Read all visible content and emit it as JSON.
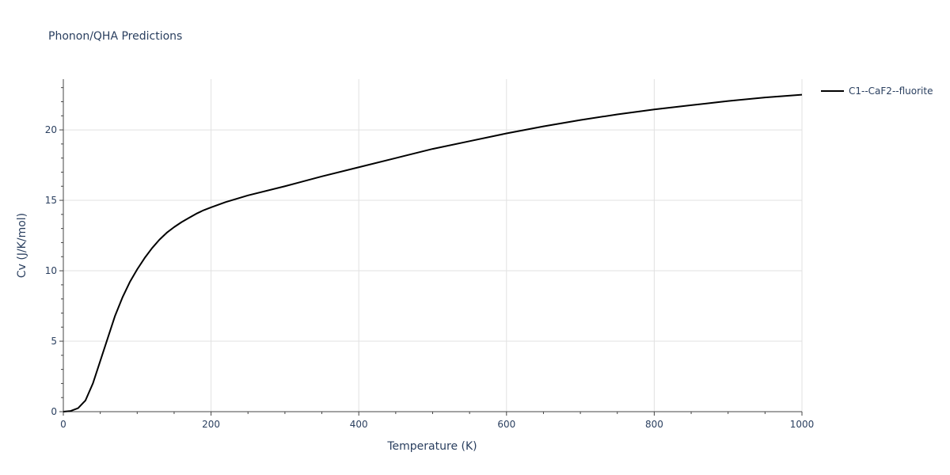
{
  "chart_data": {
    "type": "line",
    "title": "Phonon/QHA Predictions",
    "xlabel": "Temperature (K)",
    "ylabel": "Cv (J/K/mol)",
    "xlim": [
      0,
      1000
    ],
    "ylim": [
      0,
      23.6
    ],
    "xticks": [
      0,
      200,
      400,
      600,
      800,
      1000
    ],
    "xtick_labels": [
      "0",
      "200",
      "400",
      "600",
      "800",
      "1000"
    ],
    "yticks": [
      0,
      5,
      10,
      15,
      20
    ],
    "ytick_labels": [
      "0",
      "5",
      "10",
      "15",
      "20"
    ],
    "grid": true,
    "legend_position": "top-right",
    "series": [
      {
        "name": "C1--CaF2--fluorite",
        "color": "#000000",
        "x": [
          0,
          10,
          20,
          30,
          40,
          50,
          60,
          70,
          80,
          90,
          100,
          110,
          120,
          130,
          140,
          150,
          160,
          170,
          180,
          190,
          200,
          220,
          250,
          300,
          350,
          400,
          450,
          500,
          550,
          600,
          650,
          700,
          750,
          800,
          850,
          900,
          950,
          1000
        ],
        "y": [
          0,
          0.05,
          0.25,
          0.8,
          2.0,
          3.6,
          5.2,
          6.8,
          8.1,
          9.2,
          10.1,
          10.9,
          11.6,
          12.2,
          12.7,
          13.1,
          13.45,
          13.75,
          14.05,
          14.3,
          14.5,
          14.88,
          15.35,
          16.0,
          16.7,
          17.35,
          18.0,
          18.65,
          19.2,
          19.75,
          20.25,
          20.7,
          21.1,
          21.45,
          21.75,
          22.05,
          22.3,
          22.5
        ]
      }
    ]
  }
}
